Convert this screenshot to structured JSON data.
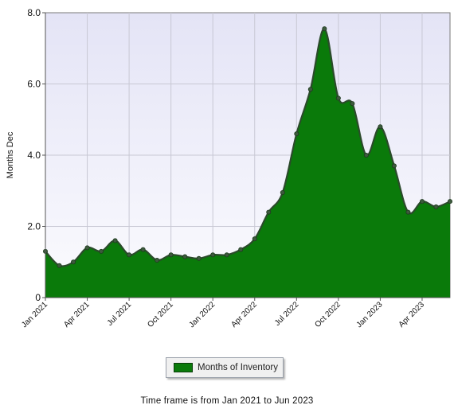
{
  "chart_data": {
    "type": "area",
    "ylabel": "Months Dec",
    "ylim": [
      0,
      8
    ],
    "yticks": [
      "0",
      "2.0",
      "4.0",
      "6.0",
      "8.0"
    ],
    "x_tick_labels": [
      "Jan 2021",
      "Apr 2021",
      "Jul 2021",
      "Oct 2021",
      "Jan 2022",
      "Apr 2022",
      "Jul 2022",
      "Oct 2022",
      "Jan 2023",
      "Apr 2023"
    ],
    "grid": true,
    "series": [
      {
        "name": "Months of Inventory",
        "color": "#0a7a0a",
        "x": [
          "2021-01",
          "2021-02",
          "2021-03",
          "2021-04",
          "2021-05",
          "2021-06",
          "2021-07",
          "2021-08",
          "2021-09",
          "2021-10",
          "2021-11",
          "2021-12",
          "2022-01",
          "2022-02",
          "2022-03",
          "2022-04",
          "2022-05",
          "2022-06",
          "2022-07",
          "2022-08",
          "2022-09",
          "2022-10",
          "2022-11",
          "2022-12",
          "2023-01",
          "2023-02",
          "2023-03",
          "2023-04",
          "2023-05",
          "2023-06"
        ],
        "values": [
          1.3,
          0.9,
          1.0,
          1.4,
          1.3,
          1.6,
          1.2,
          1.35,
          1.05,
          1.2,
          1.15,
          1.1,
          1.2,
          1.2,
          1.35,
          1.65,
          2.4,
          2.95,
          4.6,
          5.85,
          7.55,
          5.6,
          5.45,
          4.0,
          4.8,
          3.7,
          2.4,
          2.7,
          2.55,
          2.7
        ]
      }
    ],
    "legend": {
      "position": "bottom",
      "label": "Months of Inventory"
    },
    "line_color": "#2b4a2b",
    "plot_background": "#eeeef8"
  },
  "footer": {
    "text": "Time frame is from Jan 2021 to Jun 2023"
  }
}
